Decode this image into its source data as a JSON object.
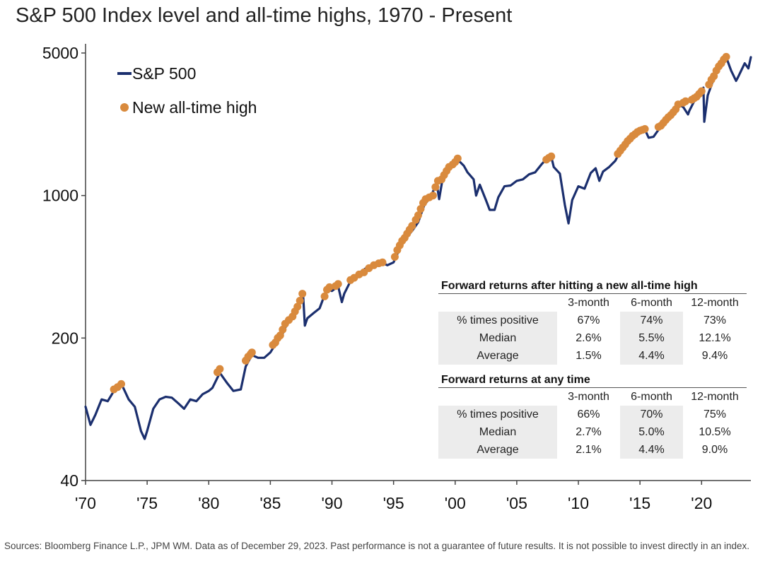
{
  "title": "S&P 500 Index level and all-time highs, 1970 - Present",
  "sources": "Sources: Bloomberg Finance L.P., JPM WM. Data as of December 29, 2023. Past performance is not a guarantee of future results. It is not possible to invest directly in an index.",
  "colors": {
    "series": "#1b2f6e",
    "ath": "#d98a3d"
  },
  "chart_data": {
    "type": "line",
    "title": "S&P 500 Index level and all-time highs, 1970 - Present",
    "y_scale": "log",
    "ylim": [
      40,
      5000
    ],
    "xlim": [
      1970,
      2024
    ],
    "y_ticks": [
      {
        "value": 40,
        "label": "40"
      },
      {
        "value": 200,
        "label": "200"
      },
      {
        "value": 1000,
        "label": "1000"
      },
      {
        "value": 5000,
        "label": "5000"
      }
    ],
    "x_ticks": [
      {
        "value": 1970,
        "label": "'70"
      },
      {
        "value": 1975,
        "label": "'75"
      },
      {
        "value": 1980,
        "label": "'80"
      },
      {
        "value": 1985,
        "label": "'85"
      },
      {
        "value": 1990,
        "label": "'90"
      },
      {
        "value": 1995,
        "label": "'95"
      },
      {
        "value": 2000,
        "label": "'00"
      },
      {
        "value": 2005,
        "label": "'05"
      },
      {
        "value": 2010,
        "label": "'10"
      },
      {
        "value": 2015,
        "label": "'15"
      },
      {
        "value": 2020,
        "label": "'20"
      }
    ],
    "grid": false,
    "legend_position": "top-left",
    "series": [
      {
        "name": "S&P 500",
        "x": [
          1970.0,
          1970.4,
          1970.8,
          1971.3,
          1971.8,
          1972.3,
          1972.8,
          1973.0,
          1973.5,
          1974.0,
          1974.5,
          1974.8,
          1975.0,
          1975.5,
          1976.0,
          1976.5,
          1977.0,
          1977.5,
          1978.0,
          1978.5,
          1979.0,
          1979.5,
          1980.0,
          1980.3,
          1980.9,
          1981.5,
          1982.0,
          1982.6,
          1983.0,
          1983.5,
          1984.0,
          1984.5,
          1985.0,
          1985.5,
          1986.0,
          1986.5,
          1987.0,
          1987.4,
          1987.65,
          1987.8,
          1988.0,
          1988.5,
          1989.0,
          1989.6,
          1990.0,
          1990.5,
          1990.8,
          1991.0,
          1991.5,
          1992.0,
          1993.0,
          1994.0,
          1994.5,
          1995.0,
          1995.5,
          1996.0,
          1996.5,
          1997.0,
          1997.5,
          1998.0,
          1998.5,
          1998.7,
          1999.0,
          1999.5,
          2000.2,
          2000.7,
          2001.0,
          2001.5,
          2001.7,
          2002.0,
          2002.5,
          2002.8,
          2003.2,
          2003.5,
          2004.0,
          2004.5,
          2005.0,
          2005.5,
          2006.0,
          2006.5,
          2007.0,
          2007.5,
          2007.8,
          2008.0,
          2008.5,
          2008.9,
          2009.2,
          2009.5,
          2010.0,
          2010.5,
          2011.0,
          2011.4,
          2011.7,
          2012.0,
          2012.5,
          2013.0,
          2013.5,
          2014.0,
          2014.5,
          2015.0,
          2015.4,
          2015.7,
          2016.1,
          2016.5,
          2017.0,
          2017.5,
          2018.0,
          2018.5,
          2018.9,
          2019.0,
          2019.5,
          2020.0,
          2020.15,
          2020.22,
          2020.5,
          2021.0,
          2021.5,
          2022.0,
          2022.4,
          2022.8,
          2023.0,
          2023.5,
          2023.8,
          2024.0
        ],
        "y": [
          92,
          75,
          84,
          100,
          98,
          110,
          118,
          116,
          100,
          92,
          70,
          64,
          70,
          90,
          100,
          103,
          102,
          96,
          90,
          100,
          98,
          106,
          110,
          114,
          135,
          120,
          110,
          112,
          145,
          165,
          160,
          160,
          170,
          190,
          210,
          245,
          270,
          310,
          330,
          230,
          250,
          265,
          280,
          350,
          340,
          360,
          300,
          330,
          380,
          410,
          450,
          470,
          455,
          470,
          550,
          620,
          670,
          740,
          900,
          980,
          1150,
          960,
          1230,
          1350,
          1500,
          1400,
          1300,
          1200,
          1000,
          1130,
          950,
          850,
          850,
          980,
          1110,
          1120,
          1180,
          1200,
          1270,
          1300,
          1420,
          1530,
          1550,
          1380,
          1280,
          900,
          730,
          950,
          1110,
          1080,
          1290,
          1360,
          1180,
          1310,
          1380,
          1480,
          1690,
          1840,
          1960,
          2060,
          2110,
          1920,
          1940,
          2100,
          2270,
          2450,
          2820,
          2720,
          2500,
          2600,
          2980,
          3230,
          3380,
          2300,
          3100,
          3750,
          4300,
          4770,
          4100,
          3650,
          3850,
          4450,
          4200,
          4770
        ]
      },
      {
        "name": "New all-time high",
        "x": [
          1972.3,
          1972.6,
          1972.9,
          1980.7,
          1980.9,
          1983.0,
          1983.2,
          1983.4,
          1983.5,
          1985.2,
          1985.4,
          1985.6,
          1985.8,
          1986.0,
          1986.2,
          1986.5,
          1986.8,
          1987.0,
          1987.2,
          1987.4,
          1987.6,
          1989.4,
          1989.6,
          1989.8,
          1990.3,
          1990.5,
          1991.5,
          1991.8,
          1992.2,
          1992.6,
          1993.0,
          1993.4,
          1993.8,
          1994.1,
          1995.1,
          1995.3,
          1995.5,
          1995.7,
          1995.9,
          1996.1,
          1996.3,
          1996.5,
          1996.8,
          1997.0,
          1997.2,
          1997.4,
          1997.6,
          1997.9,
          1998.2,
          1998.4,
          1998.6,
          1998.9,
          1999.1,
          1999.3,
          1999.5,
          1999.8,
          2000.0,
          2000.2,
          2007.4,
          2007.6,
          2007.8,
          2013.2,
          2013.4,
          2013.6,
          2013.8,
          2014.0,
          2014.2,
          2014.4,
          2014.6,
          2014.8,
          2015.0,
          2015.2,
          2015.4,
          2016.5,
          2016.7,
          2016.9,
          2017.1,
          2017.3,
          2017.5,
          2017.7,
          2017.9,
          2018.1,
          2018.5,
          2018.7,
          2019.2,
          2019.4,
          2019.6,
          2019.8,
          2020.0,
          2020.6,
          2020.8,
          2021.0,
          2021.2,
          2021.4,
          2021.6,
          2021.8,
          2022.0
        ],
        "y": [
          112,
          115,
          119,
          136,
          141,
          155,
          162,
          167,
          170,
          185,
          190,
          200,
          206,
          220,
          235,
          245,
          255,
          270,
          285,
          305,
          330,
          320,
          345,
          355,
          360,
          368,
          385,
          395,
          410,
          420,
          440,
          455,
          465,
          470,
          500,
          540,
          570,
          600,
          620,
          650,
          680,
          710,
          760,
          800,
          860,
          920,
          960,
          980,
          1000,
          1100,
          1180,
          1200,
          1260,
          1320,
          1380,
          1420,
          1460,
          1520,
          1500,
          1530,
          1555,
          1600,
          1660,
          1720,
          1780,
          1850,
          1900,
          1960,
          2000,
          2050,
          2080,
          2100,
          2120,
          2170,
          2200,
          2270,
          2350,
          2420,
          2480,
          2560,
          2650,
          2800,
          2850,
          2900,
          2950,
          3000,
          3050,
          3150,
          3250,
          3500,
          3700,
          3850,
          4100,
          4300,
          4450,
          4650,
          4790
        ]
      }
    ]
  },
  "table_ath": {
    "title": "Forward returns after hitting a new all-time high",
    "headers": [
      "3-month",
      "6-month",
      "12-month"
    ],
    "rows": [
      {
        "label": "% times positive",
        "values": [
          "67%",
          "74%",
          "73%"
        ]
      },
      {
        "label": "Median",
        "values": [
          "2.6%",
          "5.5%",
          "12.1%"
        ]
      },
      {
        "label": "Average",
        "values": [
          "1.5%",
          "4.4%",
          "9.4%"
        ]
      }
    ]
  },
  "table_any": {
    "title": "Forward returns at any time",
    "headers": [
      "3-month",
      "6-month",
      "12-month"
    ],
    "rows": [
      {
        "label": "% times positive",
        "values": [
          "66%",
          "70%",
          "75%"
        ]
      },
      {
        "label": "Median",
        "values": [
          "2.7%",
          "5.0%",
          "10.5%"
        ]
      },
      {
        "label": "Average",
        "values": [
          "2.1%",
          "4.4%",
          "9.0%"
        ]
      }
    ]
  }
}
